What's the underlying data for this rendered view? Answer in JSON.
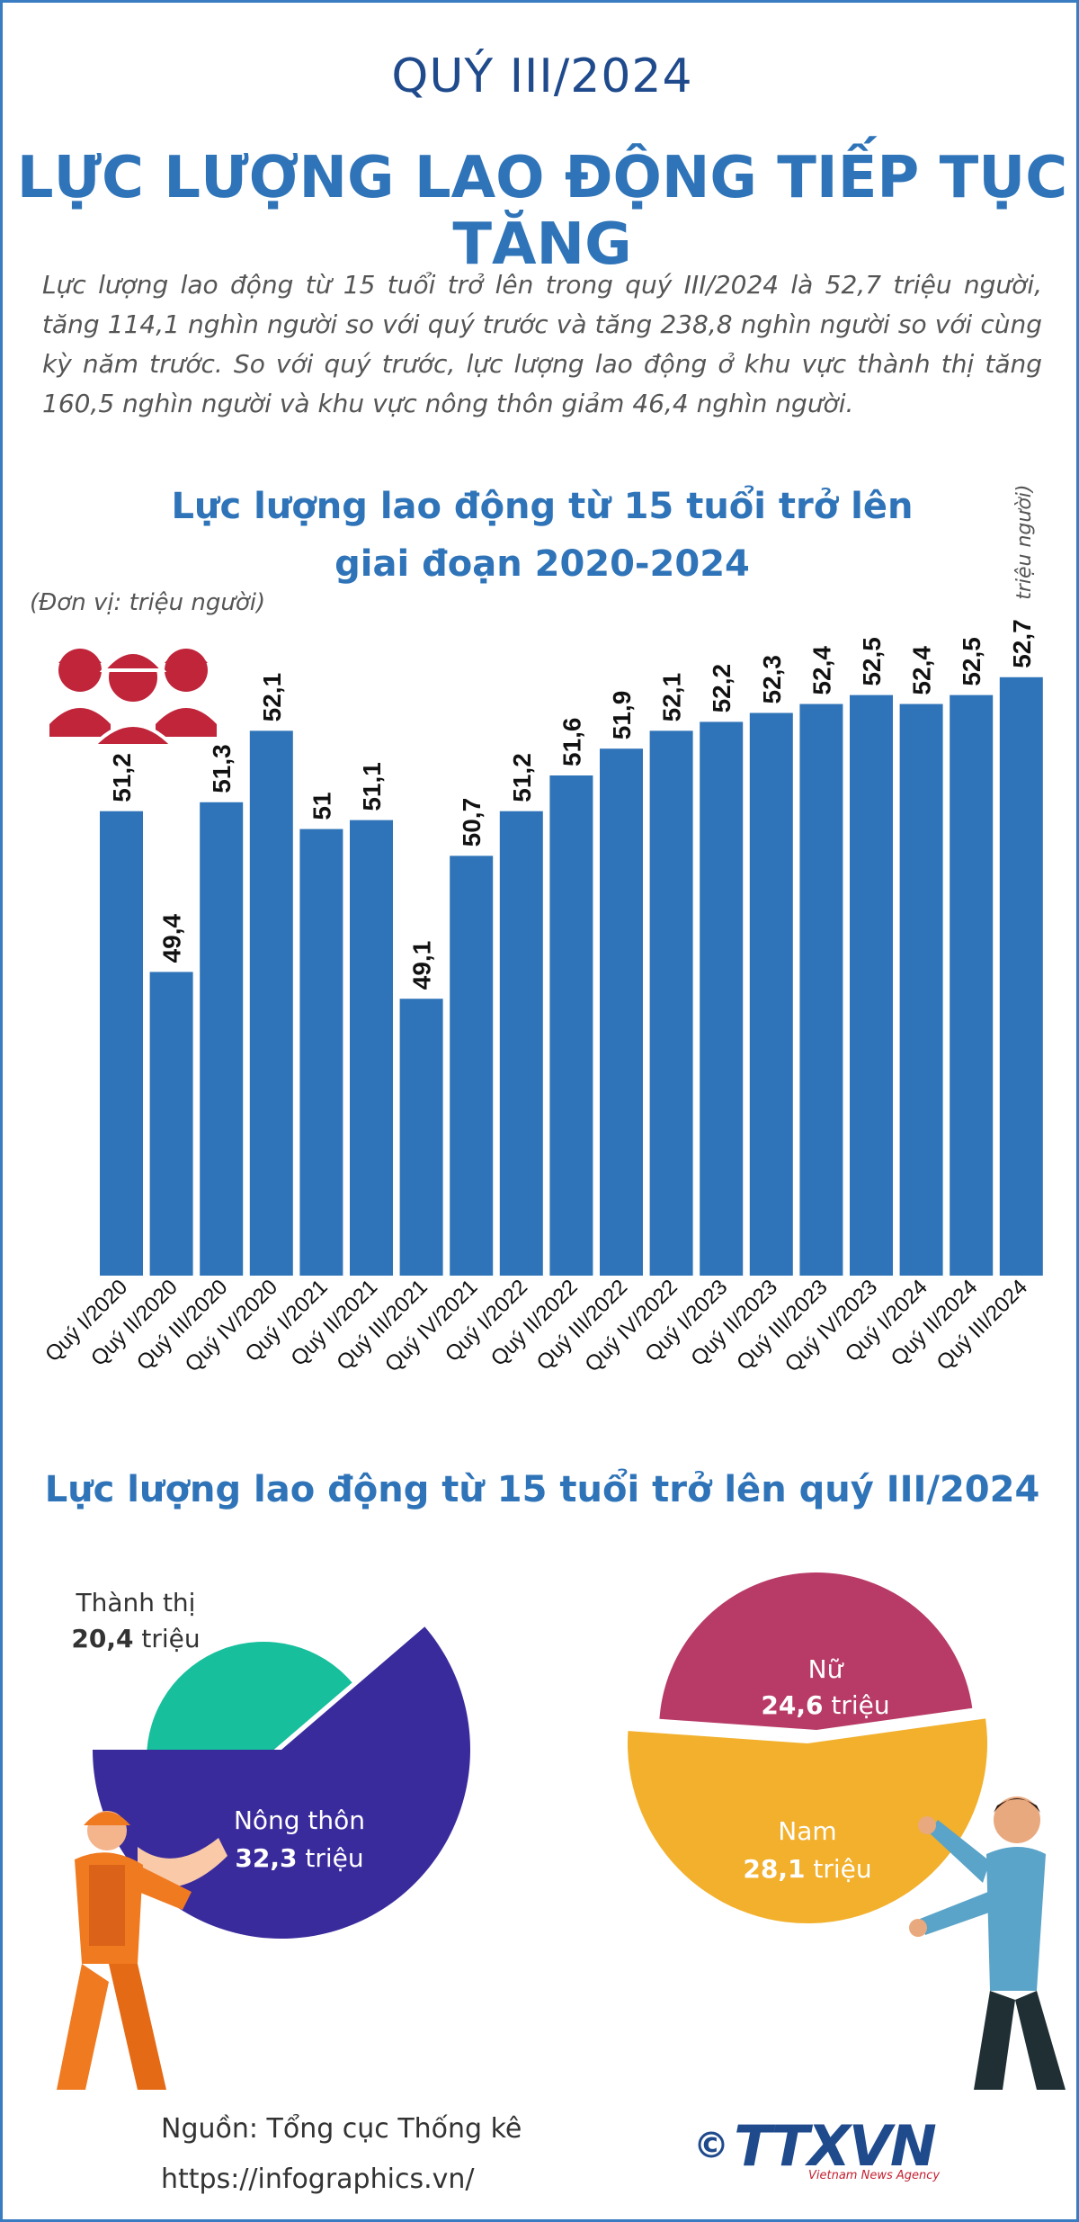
{
  "header": {
    "period": "QUÝ III/2024",
    "headline": "LỰC LƯỢNG LAO ĐỘNG TIẾP TỤC TĂNG"
  },
  "intro": "Lực lượng lao động từ 15 tuổi trở lên trong quý III/2024 là 52,7 triệu người, tăng 114,1 nghìn người so với quý trước và tăng 238,8 nghìn người so với cùng kỳ năm trước. So với quý trước, lực lượng lao động ở khu vực thành thị tăng 160,5 nghìn người và khu vực nông thôn giảm 46,4 nghìn người.",
  "colors": {
    "bar": "#2f74b8",
    "title_blue": "#2f74b8",
    "dark_blue": "#1f4a8c",
    "urban": "#17bf9c",
    "rural": "#3a2b9c",
    "female": "#b83a66",
    "male": "#f2b02c"
  },
  "chart_data": [
    {
      "type": "bar",
      "title_line1": "Lực lượng lao động từ 15 tuổi trở lên",
      "title_line2": "giai đoạn 2020-2024",
      "unit_note": "(Đơn vị: triệu người)",
      "last_bar_unit": "triệu người)",
      "categories": [
        "Quý I/2020",
        "Quý II/2020",
        "Quý III/2020",
        "Quý IV/2020",
        "Quý I/2021",
        "Quý II/2021",
        "Quý III/2021",
        "Quý IV/2021",
        "Quý I/2022",
        "Quý II/2022",
        "Quý III/2022",
        "Quý IV/2022",
        "Quý I/2023",
        "Quý II/2023",
        "Quý III/2023",
        "Quý IV/2023",
        "Quý I/2024",
        "Quý II/2024",
        "Quý III/2024"
      ],
      "values": [
        51.2,
        49.4,
        51.3,
        52.1,
        51.0,
        51.1,
        49.1,
        50.7,
        51.2,
        51.6,
        51.9,
        52.1,
        52.2,
        52.3,
        52.4,
        52.5,
        52.4,
        52.5,
        52.7
      ],
      "labels": [
        "51,2",
        "49,4",
        "51,3",
        "52,1",
        "51",
        "51,1",
        "49,1",
        "50,7",
        "51,2",
        "51,6",
        "51,9",
        "52,1",
        "52,2",
        "52,3",
        "52,4",
        "52,5",
        "52,4",
        "52,5",
        "52,7"
      ],
      "ylim": [
        46,
        53
      ]
    },
    {
      "type": "pie",
      "title": "Lực lượng lao động từ 15 tuổi trở lên quý III/2024",
      "slices": [
        {
          "name": "Thành thị",
          "value": 20.4,
          "label": "20,4",
          "unit": "triệu"
        },
        {
          "name": "Nông thôn",
          "value": 32.3,
          "label": "32,3",
          "unit": "triệu"
        }
      ]
    },
    {
      "type": "pie",
      "slices": [
        {
          "name": "Nữ",
          "value": 24.6,
          "label": "24,6",
          "unit": "triệu"
        },
        {
          "name": "Nam",
          "value": 28.1,
          "label": "28,1",
          "unit": "triệu"
        }
      ]
    }
  ],
  "footer": {
    "source": "Nguồn: Tổng cục Thống kê",
    "website": "https://infographics.vn/",
    "copyright_symbol": "©",
    "brand": "TTXVN",
    "agency": "Vietnam News Agency"
  }
}
